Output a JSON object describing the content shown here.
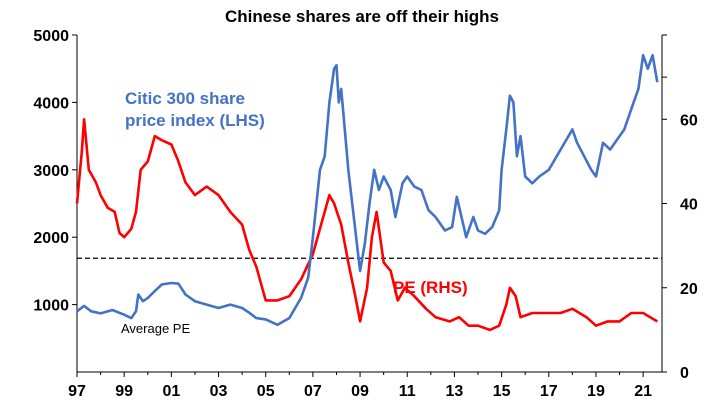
{
  "chart_data": {
    "type": "line",
    "title": "Chinese  shares are off their highs",
    "x_tick_labels": [
      "97",
      "99",
      "01",
      "03",
      "05",
      "07",
      "09",
      "11",
      "13",
      "15",
      "17",
      "19",
      "21"
    ],
    "x_range": [
      1997,
      2021.8
    ],
    "y_left": {
      "range": [
        0,
        5000
      ],
      "tick_labels": [
        "1000",
        "2000",
        "3000",
        "4000",
        "5000"
      ],
      "tick_values": [
        1000,
        2000,
        3000,
        4000,
        5000
      ]
    },
    "y_right": {
      "range": [
        0,
        80
      ],
      "tick_labels": [
        "0",
        "20",
        "40",
        "60"
      ],
      "tick_values": [
        0,
        20,
        40,
        60
      ]
    },
    "grid": false,
    "colors": {
      "index": "#4472C4",
      "pe": "#FF0000",
      "average": "#000000"
    },
    "series": [
      {
        "name": "Citic 300 share price index (LHS)",
        "axis": "left",
        "points": [
          [
            1997.0,
            900
          ],
          [
            1997.3,
            980
          ],
          [
            1997.6,
            900
          ],
          [
            1998.0,
            870
          ],
          [
            1998.5,
            920
          ],
          [
            1999.0,
            850
          ],
          [
            1999.3,
            800
          ],
          [
            1999.5,
            900
          ],
          [
            1999.6,
            1150
          ],
          [
            1999.8,
            1050
          ],
          [
            2000.0,
            1100
          ],
          [
            2000.3,
            1200
          ],
          [
            2000.6,
            1300
          ],
          [
            2001.0,
            1320
          ],
          [
            2001.3,
            1310
          ],
          [
            2001.6,
            1150
          ],
          [
            2002.0,
            1050
          ],
          [
            2002.5,
            1000
          ],
          [
            2003.0,
            950
          ],
          [
            2003.5,
            1000
          ],
          [
            2004.0,
            950
          ],
          [
            2004.3,
            880
          ],
          [
            2004.6,
            800
          ],
          [
            2005.0,
            780
          ],
          [
            2005.5,
            700
          ],
          [
            2006.0,
            800
          ],
          [
            2006.5,
            1100
          ],
          [
            2006.8,
            1400
          ],
          [
            2007.0,
            2000
          ],
          [
            2007.3,
            3000
          ],
          [
            2007.5,
            3200
          ],
          [
            2007.7,
            4000
          ],
          [
            2007.9,
            4500
          ],
          [
            2008.0,
            4550
          ],
          [
            2008.1,
            4000
          ],
          [
            2008.2,
            4200
          ],
          [
            2008.3,
            3800
          ],
          [
            2008.5,
            3000
          ],
          [
            2008.7,
            2400
          ],
          [
            2008.9,
            1800
          ],
          [
            2009.0,
            1500
          ],
          [
            2009.2,
            1900
          ],
          [
            2009.4,
            2500
          ],
          [
            2009.6,
            3000
          ],
          [
            2009.8,
            2700
          ],
          [
            2010.0,
            2900
          ],
          [
            2010.3,
            2700
          ],
          [
            2010.5,
            2300
          ],
          [
            2010.8,
            2800
          ],
          [
            2011.0,
            2900
          ],
          [
            2011.3,
            2750
          ],
          [
            2011.6,
            2700
          ],
          [
            2011.9,
            2400
          ],
          [
            2012.2,
            2300
          ],
          [
            2012.6,
            2100
          ],
          [
            2012.9,
            2150
          ],
          [
            2013.1,
            2600
          ],
          [
            2013.3,
            2300
          ],
          [
            2013.5,
            2000
          ],
          [
            2013.8,
            2300
          ],
          [
            2014.0,
            2100
          ],
          [
            2014.3,
            2050
          ],
          [
            2014.6,
            2150
          ],
          [
            2014.9,
            2400
          ],
          [
            2015.0,
            3000
          ],
          [
            2015.2,
            3600
          ],
          [
            2015.35,
            4100
          ],
          [
            2015.5,
            4000
          ],
          [
            2015.65,
            3200
          ],
          [
            2015.8,
            3500
          ],
          [
            2016.0,
            2900
          ],
          [
            2016.3,
            2800
          ],
          [
            2016.6,
            2900
          ],
          [
            2017.0,
            3000
          ],
          [
            2017.5,
            3300
          ],
          [
            2018.0,
            3600
          ],
          [
            2018.2,
            3400
          ],
          [
            2018.5,
            3200
          ],
          [
            2018.8,
            3000
          ],
          [
            2019.0,
            2900
          ],
          [
            2019.3,
            3400
          ],
          [
            2019.6,
            3300
          ],
          [
            2019.9,
            3450
          ],
          [
            2020.2,
            3600
          ],
          [
            2020.5,
            3900
          ],
          [
            2020.8,
            4200
          ],
          [
            2021.0,
            4700
          ],
          [
            2021.2,
            4500
          ],
          [
            2021.4,
            4700
          ],
          [
            2021.6,
            4300
          ]
        ]
      },
      {
        "name": "PE (RHS)",
        "axis": "right",
        "points": [
          [
            1997.0,
            40
          ],
          [
            1997.2,
            52
          ],
          [
            1997.3,
            60
          ],
          [
            1997.5,
            48
          ],
          [
            1997.8,
            45
          ],
          [
            1998.0,
            42
          ],
          [
            1998.3,
            39
          ],
          [
            1998.6,
            38
          ],
          [
            1998.8,
            33
          ],
          [
            1999.0,
            32
          ],
          [
            1999.3,
            34
          ],
          [
            1999.5,
            38
          ],
          [
            1999.7,
            48
          ],
          [
            2000.0,
            50
          ],
          [
            2000.3,
            56
          ],
          [
            2000.6,
            55
          ],
          [
            2001.0,
            54
          ],
          [
            2001.3,
            50
          ],
          [
            2001.6,
            45
          ],
          [
            2002.0,
            42
          ],
          [
            2002.5,
            44
          ],
          [
            2003.0,
            42
          ],
          [
            2003.5,
            38
          ],
          [
            2004.0,
            35
          ],
          [
            2004.3,
            29
          ],
          [
            2004.6,
            25
          ],
          [
            2005.0,
            17
          ],
          [
            2005.5,
            17
          ],
          [
            2006.0,
            18
          ],
          [
            2006.5,
            22
          ],
          [
            2007.0,
            28
          ],
          [
            2007.4,
            36
          ],
          [
            2007.7,
            42
          ],
          [
            2007.9,
            40
          ],
          [
            2008.2,
            35
          ],
          [
            2008.5,
            26
          ],
          [
            2008.8,
            18
          ],
          [
            2009.0,
            12
          ],
          [
            2009.3,
            20
          ],
          [
            2009.5,
            32
          ],
          [
            2009.7,
            38
          ],
          [
            2010.0,
            26
          ],
          [
            2010.3,
            24
          ],
          [
            2010.6,
            17
          ],
          [
            2010.9,
            20
          ],
          [
            2011.3,
            18
          ],
          [
            2011.8,
            15
          ],
          [
            2012.2,
            13
          ],
          [
            2012.8,
            12
          ],
          [
            2013.2,
            13
          ],
          [
            2013.6,
            11
          ],
          [
            2014.0,
            11
          ],
          [
            2014.5,
            10
          ],
          [
            2014.9,
            11
          ],
          [
            2015.2,
            16
          ],
          [
            2015.35,
            20
          ],
          [
            2015.6,
            18
          ],
          [
            2015.8,
            13
          ],
          [
            2016.3,
            14
          ],
          [
            2017.0,
            14
          ],
          [
            2017.5,
            14
          ],
          [
            2018.0,
            15
          ],
          [
            2018.6,
            13
          ],
          [
            2019.0,
            11
          ],
          [
            2019.5,
            12
          ],
          [
            2020.0,
            12
          ],
          [
            2020.5,
            14
          ],
          [
            2021.0,
            14
          ],
          [
            2021.3,
            13
          ],
          [
            2021.6,
            12
          ]
        ]
      }
    ],
    "reference_lines": [
      {
        "name": "Average PE",
        "axis": "right",
        "value": 27
      }
    ],
    "annotations": [
      {
        "series": "index",
        "lines": [
          "Citic 300 share",
          "price index (LHS)"
        ]
      },
      {
        "series": "pe",
        "lines": [
          "PE (RHS)"
        ]
      },
      {
        "series": "average",
        "lines": [
          "Average PE"
        ]
      }
    ]
  }
}
